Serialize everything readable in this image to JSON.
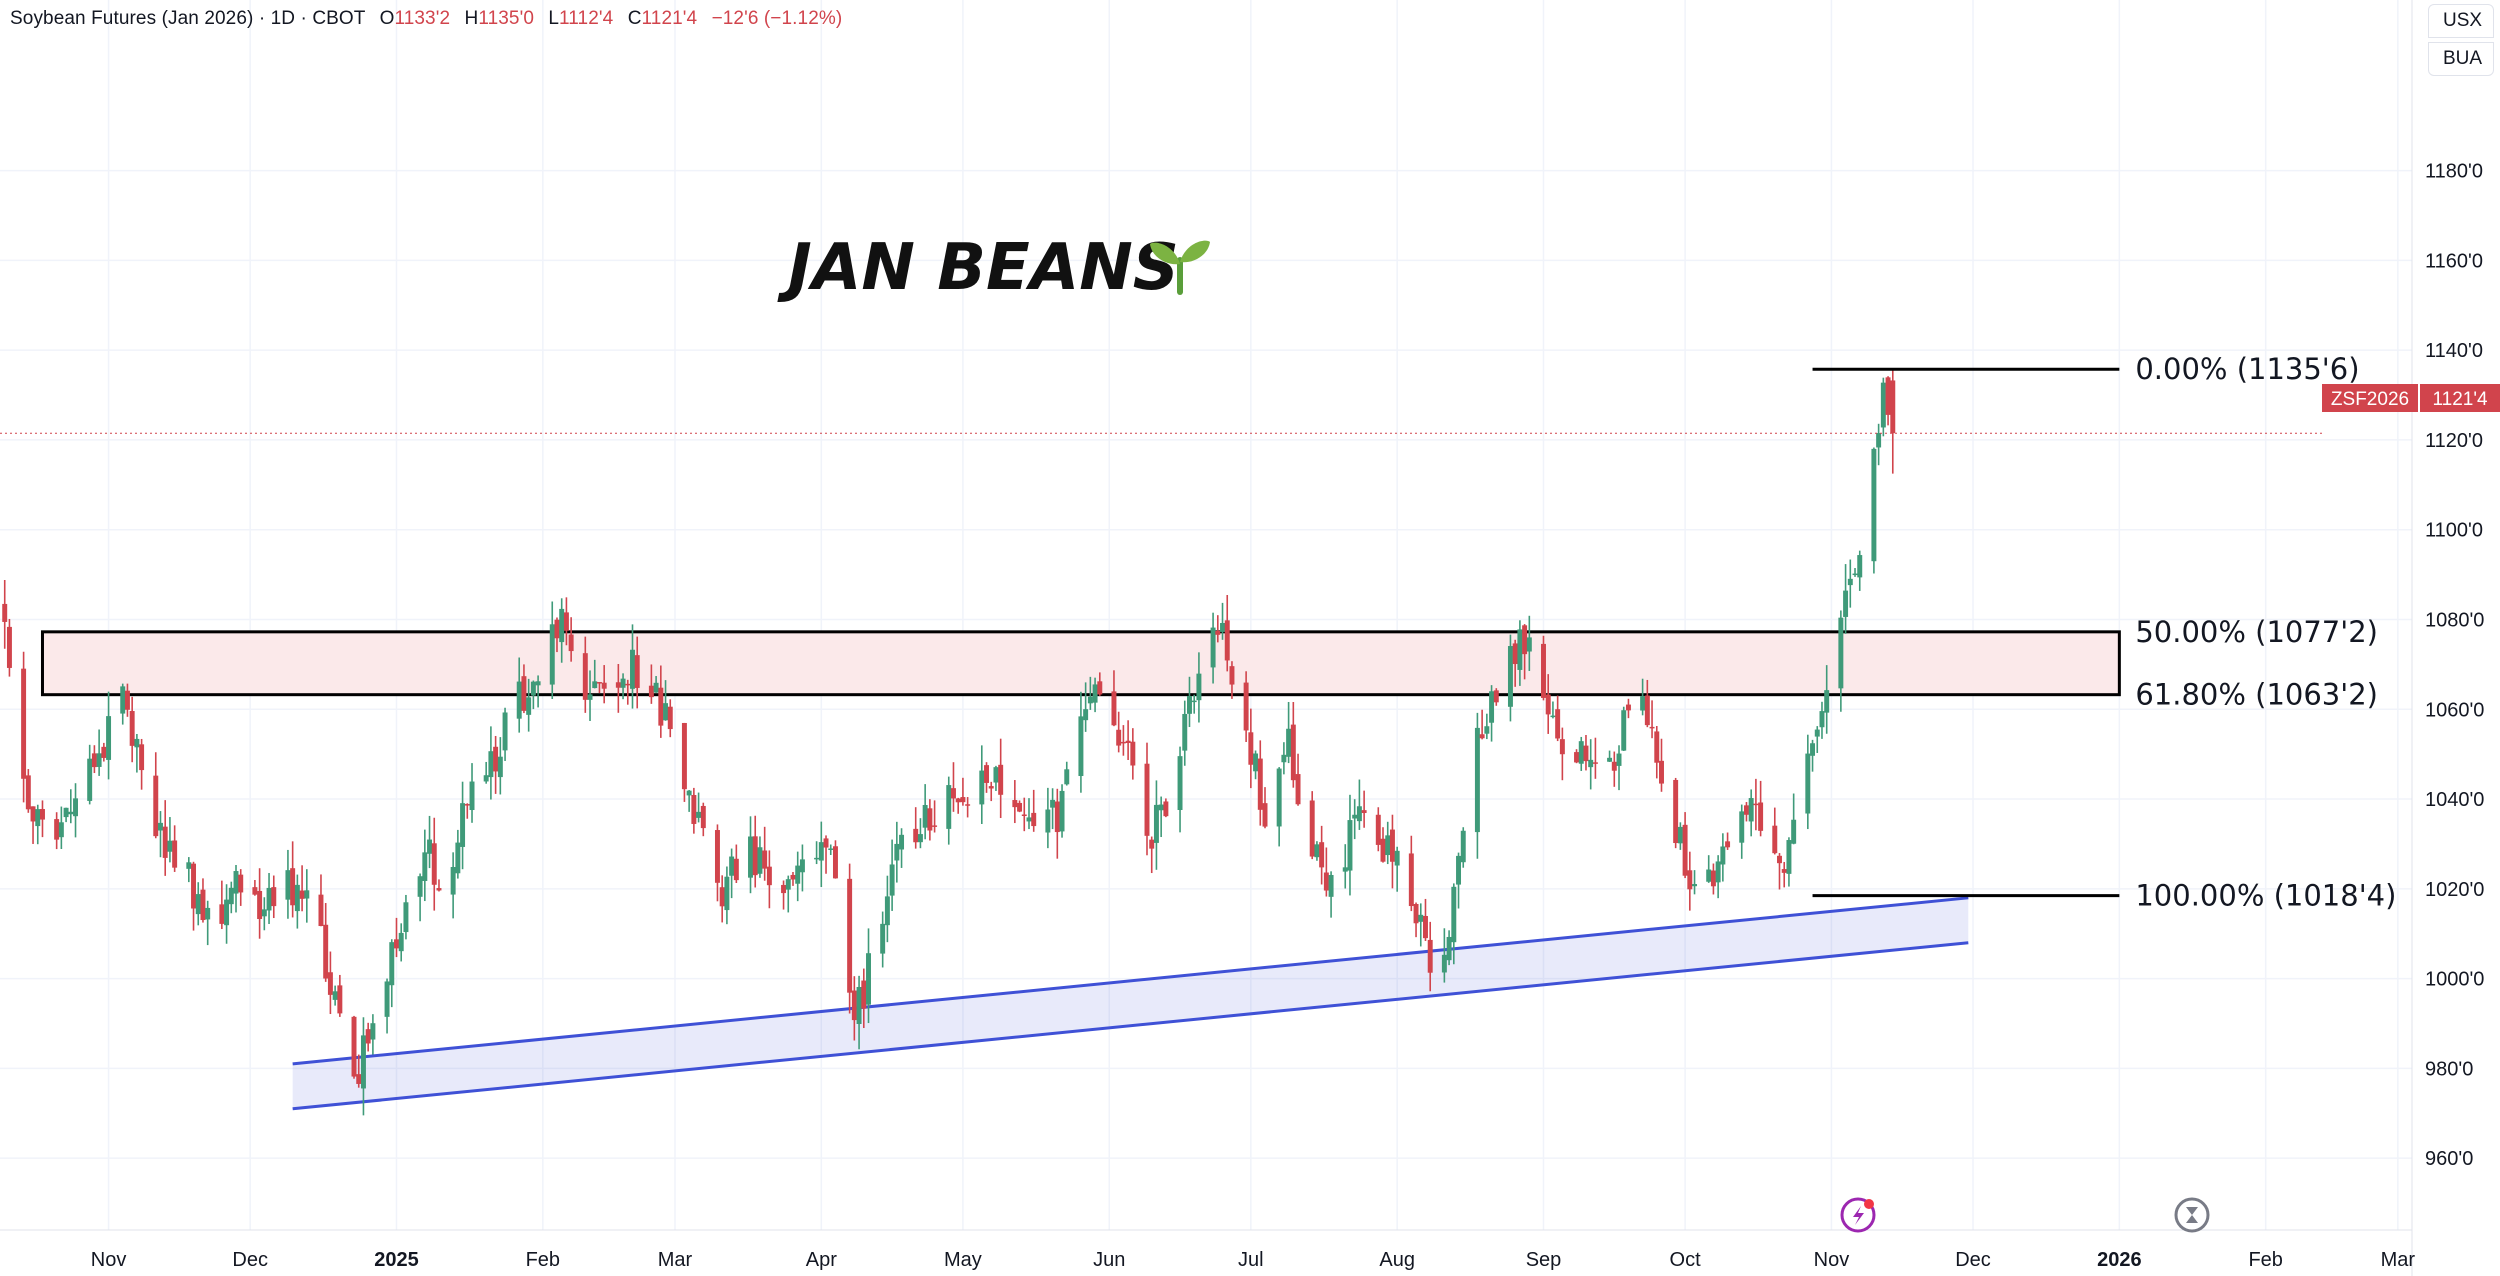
{
  "legend": {
    "symbol": "Soybean Futures (Jan 2026)",
    "interval": "1D",
    "exchange": "CBOT",
    "open_label": "O",
    "open": "1133'2",
    "high_label": "H",
    "high": "1135'0",
    "low_label": "L",
    "low": "1112'4",
    "close_label": "C",
    "close": "1121'4",
    "change": "−12'6 (−1.12%)"
  },
  "side_buttons": {
    "currency": "USX",
    "unit": "BUA"
  },
  "annotation_title": "JAN BEANS",
  "price_tag": {
    "symbol": "ZSF2026",
    "price": "1121'4",
    "value": 1121.5
  },
  "colors": {
    "up": "#3f9a79",
    "down": "#d1444c",
    "channel": "#3f51d6",
    "zone_fill": "#fbe9ea",
    "text": "#131722"
  },
  "chart_data": {
    "type": "candlestick",
    "title": "Soybean Futures (Jan 2026) · 1D · CBOT",
    "y_ticks": [
      960,
      980,
      1000,
      1020,
      1040,
      1060,
      1080,
      1100,
      1120,
      1140,
      1160,
      1180
    ],
    "y_tick_labels": [
      "960'0",
      "980'0",
      "1000'0",
      "1020'0",
      "1040'0",
      "1060'0",
      "1080'0",
      "1100'0",
      "1120'0",
      "1140'0",
      "1160'0",
      "1180'0"
    ],
    "ylim": [
      944,
      1218
    ],
    "x_tick_labels": [
      "Nov",
      "Dec",
      "2025",
      "Feb",
      "Mar",
      "Apr",
      "May",
      "Jun",
      "Jul",
      "Aug",
      "Sep",
      "Oct",
      "Nov",
      "Dec",
      "2026",
      "Feb",
      "Mar"
    ],
    "x_tick_dates": [
      "2024-11-01",
      "2024-12-01",
      "2025-01-01",
      "2025-02-01",
      "2025-03-01",
      "2025-04-01",
      "2025-05-01",
      "2025-06-01",
      "2025-07-01",
      "2025-08-01",
      "2025-09-01",
      "2025-10-01",
      "2025-11-01",
      "2025-12-01",
      "2026-01-01",
      "2026-02-01",
      "2026-03-01"
    ],
    "x_bold_ticks": [
      "2025",
      "2026"
    ],
    "xlim": [
      "2024-10-09",
      "2026-03-04"
    ],
    "grid": true,
    "price_path": [
      [
        "2024-10-10",
        1082
      ],
      [
        "2024-10-15",
        1040
      ],
      [
        "2024-10-20",
        1034
      ],
      [
        "2024-10-25",
        1038
      ],
      [
        "2024-10-30",
        1050
      ],
      [
        "2024-11-04",
        1063
      ],
      [
        "2024-11-08",
        1045
      ],
      [
        "2024-11-13",
        1030
      ],
      [
        "2024-11-18",
        1022
      ],
      [
        "2024-11-23",
        1012
      ],
      [
        "2024-11-28",
        1020
      ],
      [
        "2024-12-03",
        1013
      ],
      [
        "2024-12-08",
        1020
      ],
      [
        "2024-12-13",
        1021
      ],
      [
        "2024-12-18",
        1000
      ],
      [
        "2024-12-23",
        977
      ],
      [
        "2024-12-28",
        996
      ],
      [
        "2025-01-02",
        1014
      ],
      [
        "2025-01-07",
        1030
      ],
      [
        "2025-01-12",
        1018
      ],
      [
        "2025-01-17",
        1046
      ],
      [
        "2025-01-22",
        1050
      ],
      [
        "2025-01-27",
        1062
      ],
      [
        "2025-02-01",
        1072
      ],
      [
        "2025-02-05",
        1080
      ],
      [
        "2025-02-10",
        1066
      ],
      [
        "2025-02-15",
        1068
      ],
      [
        "2025-02-20",
        1070
      ],
      [
        "2025-02-25",
        1062
      ],
      [
        "2025-03-02",
        1050
      ],
      [
        "2025-03-06",
        1033
      ],
      [
        "2025-03-11",
        1020
      ],
      [
        "2025-03-16",
        1028
      ],
      [
        "2025-03-21",
        1025
      ],
      [
        "2025-03-26",
        1020
      ],
      [
        "2025-03-31",
        1028
      ],
      [
        "2025-04-04",
        1024
      ],
      [
        "2025-04-08",
        990
      ],
      [
        "2025-04-12",
        1005
      ],
      [
        "2025-04-17",
        1030
      ],
      [
        "2025-04-22",
        1036
      ],
      [
        "2025-04-27",
        1038
      ],
      [
        "2025-05-02",
        1042
      ],
      [
        "2025-05-07",
        1046
      ],
      [
        "2025-05-12",
        1038
      ],
      [
        "2025-05-17",
        1032
      ],
      [
        "2025-05-22",
        1038
      ],
      [
        "2025-05-27",
        1062
      ],
      [
        "2025-06-01",
        1063
      ],
      [
        "2025-06-05",
        1048
      ],
      [
        "2025-06-10",
        1032
      ],
      [
        "2025-06-15",
        1046
      ],
      [
        "2025-06-20",
        1068
      ],
      [
        "2025-06-24",
        1080
      ],
      [
        "2025-06-29",
        1062
      ],
      [
        "2025-07-04",
        1036
      ],
      [
        "2025-07-09",
        1052
      ],
      [
        "2025-07-14",
        1028
      ],
      [
        "2025-07-19",
        1020
      ],
      [
        "2025-07-24",
        1040
      ],
      [
        "2025-07-29",
        1030
      ],
      [
        "2025-08-03",
        1020
      ],
      [
        "2025-08-08",
        1004
      ],
      [
        "2025-08-12",
        1008
      ],
      [
        "2025-08-17",
        1050
      ],
      [
        "2025-08-22",
        1064
      ],
      [
        "2025-08-27",
        1076
      ],
      [
        "2025-09-01",
        1066
      ],
      [
        "2025-09-06",
        1048
      ],
      [
        "2025-09-11",
        1052
      ],
      [
        "2025-09-16",
        1048
      ],
      [
        "2025-09-21",
        1068
      ],
      [
        "2025-09-26",
        1044
      ],
      [
        "2025-10-01",
        1026
      ],
      [
        "2025-10-05",
        1018
      ],
      [
        "2025-10-09",
        1032
      ],
      [
        "2025-10-14",
        1040
      ],
      [
        "2025-10-19",
        1030
      ],
      [
        "2025-10-22",
        1020
      ],
      [
        "2025-10-26",
        1050
      ],
      [
        "2025-10-30",
        1062
      ],
      [
        "2025-11-03",
        1082
      ],
      [
        "2025-11-06",
        1090
      ],
      [
        "2025-11-09",
        1108
      ],
      [
        "2025-11-12",
        1134
      ],
      [
        "2025-11-14",
        1121.5
      ]
    ],
    "support_channel": {
      "upper": [
        [
          "2024-12-10",
          981
        ],
        [
          "2025-11-30",
          1018
        ]
      ],
      "lower": [
        [
          "2024-12-10",
          971
        ],
        [
          "2025-11-30",
          1008
        ]
      ]
    },
    "resistance_zone": {
      "from": "2024-10-18",
      "to": "2026-01-01",
      "top": 1077.25,
      "bottom": 1063.25
    },
    "fib_levels": [
      {
        "label": "0.00% (1135'6)",
        "value": 1135.75,
        "from": "2025-10-28",
        "to": "2026-01-01"
      },
      {
        "label": "50.00% (1077'2)",
        "value": 1077.25,
        "from": "2026-01-01",
        "to": "2026-01-01"
      },
      {
        "label": "61.80% (1063'2)",
        "value": 1063.25,
        "from": "2026-01-01",
        "to": "2026-01-01"
      },
      {
        "label": "100.00% (1018'4)",
        "value": 1018.5,
        "from": "2025-10-28",
        "to": "2026-01-01"
      }
    ]
  }
}
